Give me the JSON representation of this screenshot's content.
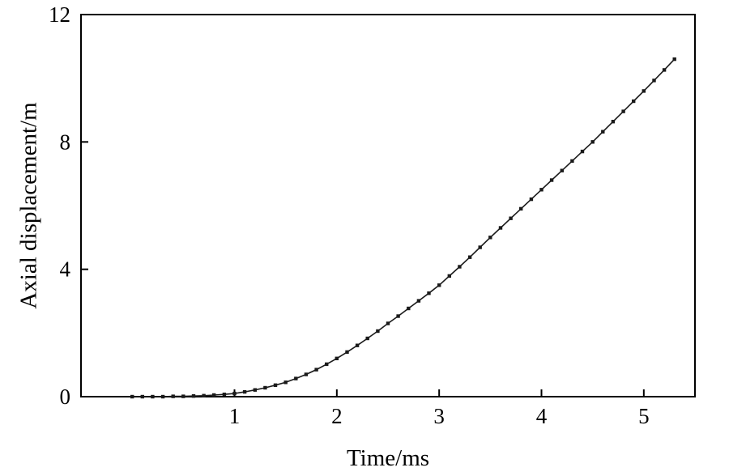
{
  "chart_data": {
    "type": "line",
    "title": "",
    "xlabel": "Time/ms",
    "ylabel": "Axial displacement/m",
    "xlim": [
      -0.5,
      5.5
    ],
    "ylim": [
      0,
      12
    ],
    "x_ticks": [
      1,
      2,
      3,
      4,
      5
    ],
    "y_ticks": [
      0,
      4,
      8,
      12
    ],
    "grid": false,
    "legend": false,
    "series": [
      {
        "name": "axial-displacement",
        "color": "#1a1a1a",
        "marker": "square",
        "line_width": 1.6,
        "x": [
          0.0,
          0.1,
          0.2,
          0.3,
          0.4,
          0.5,
          0.6,
          0.7,
          0.8,
          0.9,
          1.0,
          1.1,
          1.2,
          1.3,
          1.4,
          1.5,
          1.6,
          1.7,
          1.8,
          1.9,
          2.0,
          2.1,
          2.2,
          2.3,
          2.4,
          2.5,
          2.6,
          2.7,
          2.8,
          2.9,
          3.0,
          3.1,
          3.2,
          3.3,
          3.4,
          3.5,
          3.6,
          3.7,
          3.8,
          3.9,
          4.0,
          4.1,
          4.2,
          4.3,
          4.4,
          4.5,
          4.6,
          4.7,
          4.8,
          4.9,
          5.0,
          5.1,
          5.2,
          5.3
        ],
        "y": [
          0.0,
          0.0,
          0.0,
          0.0,
          0.01,
          0.01,
          0.02,
          0.03,
          0.05,
          0.07,
          0.1,
          0.15,
          0.21,
          0.28,
          0.36,
          0.45,
          0.57,
          0.7,
          0.85,
          1.02,
          1.2,
          1.4,
          1.61,
          1.83,
          2.06,
          2.3,
          2.53,
          2.77,
          3.01,
          3.25,
          3.5,
          3.79,
          4.08,
          4.38,
          4.69,
          5.0,
          5.3,
          5.6,
          5.9,
          6.2,
          6.5,
          6.8,
          7.1,
          7.4,
          7.7,
          8.0,
          8.32,
          8.64,
          8.96,
          9.28,
          9.6,
          9.93,
          10.26,
          10.6
        ]
      }
    ]
  },
  "colors": {
    "background": "#ffffff",
    "axis": "#000000",
    "line": "#1a1a1a"
  }
}
